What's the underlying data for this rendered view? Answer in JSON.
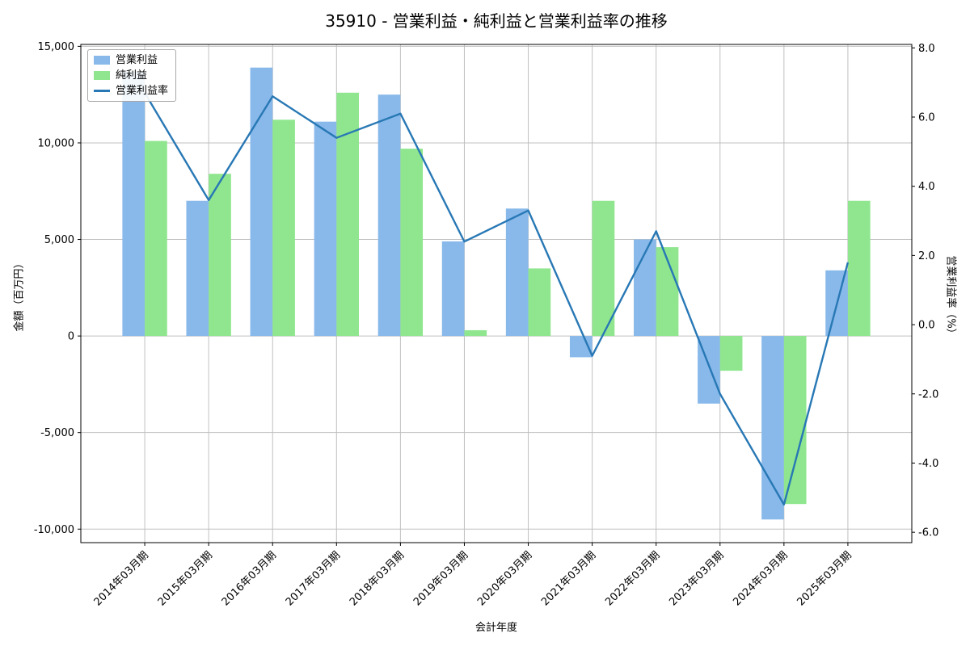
{
  "chart_data": {
    "type": "bar",
    "title": "35910 - 営業利益・純利益と営業利益率の推移",
    "xlabel": "会計年度",
    "ylabel_left": "金額（百万円）",
    "ylabel_right": "営業利益率（%）",
    "categories": [
      "2014年03月期",
      "2015年03月期",
      "2016年03月期",
      "2017年03月期",
      "2018年03月期",
      "2019年03月期",
      "2020年03月期",
      "2021年03月期",
      "2022年03月期",
      "2023年03月期",
      "2024年03月期",
      "2025年03月期"
    ],
    "series": [
      {
        "name": "営業利益",
        "type": "bar",
        "axis": "left",
        "color": "#88b9ea",
        "values": [
          13700,
          7000,
          13900,
          11100,
          12500,
          4900,
          6600,
          -1100,
          5000,
          -3500,
          -9500,
          3400
        ]
      },
      {
        "name": "純利益",
        "type": "bar",
        "axis": "left",
        "color": "#8fe68f",
        "values": [
          10100,
          8400,
          11200,
          12600,
          9700,
          300,
          3500,
          7000,
          4600,
          -1800,
          -8700,
          7000
        ]
      },
      {
        "name": "営業利益率",
        "type": "line",
        "axis": "right",
        "color": "#2878b5",
        "values": [
          6.7,
          3.6,
          6.6,
          5.4,
          6.1,
          2.4,
          3.3,
          -0.9,
          2.7,
          -2.0,
          -5.2,
          1.8
        ]
      }
    ],
    "ylim_left": [
      -10700,
      15100
    ],
    "ylim_right": [
      -6.3,
      8.1
    ],
    "xlim": [
      -1,
      12
    ],
    "bar_width": 0.35,
    "yticks_left": {
      "values": [
        -10000,
        -5000,
        0,
        5000,
        10000,
        15000
      ],
      "labels": [
        "-10,000",
        "-5,000",
        "0",
        "5,000",
        "10,000",
        "15,000"
      ]
    },
    "yticks_right": {
      "values": [
        -6,
        -4,
        -2,
        0,
        2,
        4,
        6,
        8
      ],
      "labels": [
        "-6.0",
        "-4.0",
        "-2.0",
        "0.0",
        "2.0",
        "4.0",
        "6.0",
        "8.0"
      ]
    },
    "grid": true,
    "legend_position": "upper left",
    "grid_color": "#c0c0c0",
    "frame_color": "#000000"
  }
}
